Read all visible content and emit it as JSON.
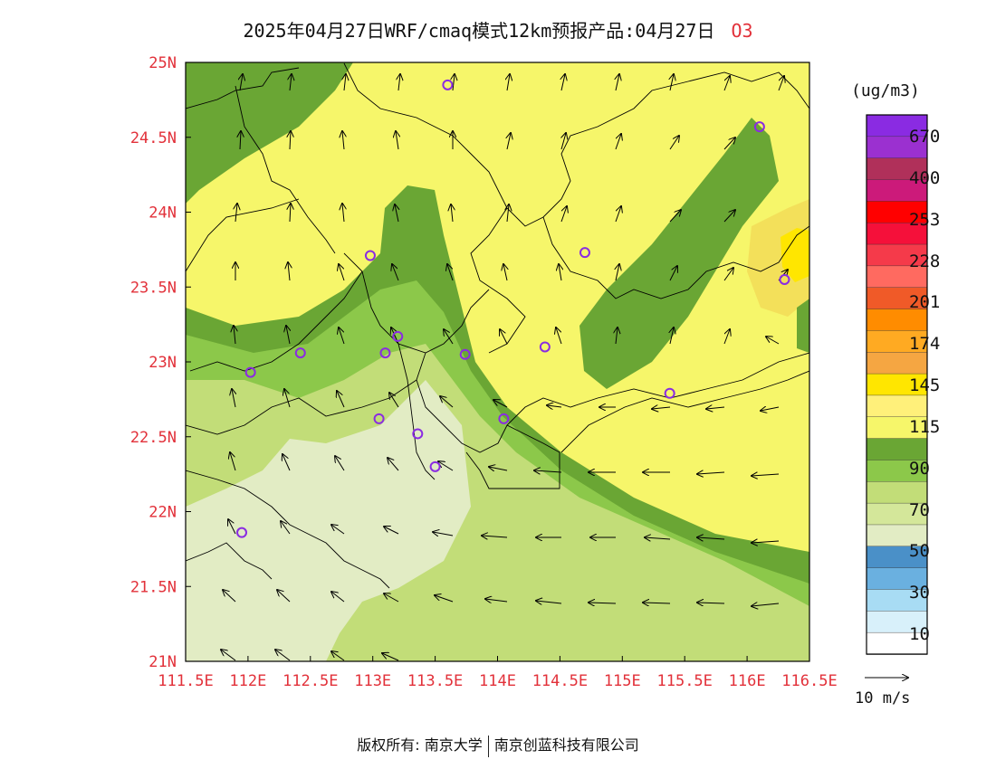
{
  "header": {
    "title": "2025年04月27日WRF/cmaq模式12km预报产品:04月27日",
    "species": "O3"
  },
  "axes": {
    "y_labels": [
      "25N",
      "24.5N",
      "24N",
      "23.5N",
      "23N",
      "22.5N",
      "22N",
      "21.5N",
      "21N"
    ],
    "x_labels": [
      "111.5E",
      "112E",
      "112.5E",
      "113E",
      "113.5E",
      "114E",
      "114.5E",
      "115E",
      "115.5E",
      "116E",
      "116.5E"
    ],
    "lat_range": [
      21,
      25
    ],
    "lon_range": [
      111.5,
      116.5
    ]
  },
  "colorbar": {
    "unit": "(ug/m3)",
    "labels": [
      "670",
      "400",
      "253",
      "228",
      "201",
      "174",
      "145",
      "115",
      "90",
      "70",
      "50",
      "30",
      "10"
    ],
    "colors_top_to_bottom": [
      "#8a2be2",
      "#9b30d0",
      "#b0305a",
      "#cc1a7a",
      "#ff0000",
      "#f5103a",
      "#f53a4a",
      "#ff6a60",
      "#f05a28",
      "#ff8c00",
      "#ffaa22",
      "#f5a642",
      "#ffe600",
      "#fff07a",
      "#f6f66a",
      "#6aa634",
      "#8cc84a",
      "#c2dd78",
      "#d4e79a",
      "#e2ecc4",
      "#4a90c8",
      "#6ab0e0",
      "#a8dcf4",
      "#d8f0fa",
      "#ffffff"
    ]
  },
  "wind_reference": {
    "label": "10 m/s"
  },
  "footer": {
    "left": "版权所有: 南京大学",
    "right": "南京创蓝科技有限公司"
  },
  "map": {
    "fill_colors": {
      "yellow": "#f6f66a",
      "dark_green": "#6aa634",
      "mid_green": "#8cc84a",
      "light_green": "#c2dd78",
      "pale_green": "#e2ecc4",
      "orange_yellow": "#f3e05a",
      "bright_yellow": "#ffe600"
    },
    "stations": [
      {
        "lon": 113.6,
        "lat": 24.85
      },
      {
        "lon": 116.1,
        "lat": 24.57
      },
      {
        "lon": 112.98,
        "lat": 23.71
      },
      {
        "lon": 114.7,
        "lat": 23.73
      },
      {
        "lon": 116.3,
        "lat": 23.55
      },
      {
        "lon": 112.42,
        "lat": 23.06
      },
      {
        "lon": 113.2,
        "lat": 23.17
      },
      {
        "lon": 113.1,
        "lat": 23.06
      },
      {
        "lon": 113.74,
        "lat": 23.05
      },
      {
        "lon": 114.38,
        "lat": 23.1
      },
      {
        "lon": 112.02,
        "lat": 22.93
      },
      {
        "lon": 115.38,
        "lat": 22.79
      },
      {
        "lon": 113.05,
        "lat": 22.62
      },
      {
        "lon": 114.05,
        "lat": 22.62
      },
      {
        "lon": 113.36,
        "lat": 22.52
      },
      {
        "lon": 113.5,
        "lat": 22.3
      },
      {
        "lon": 111.95,
        "lat": 21.86
      }
    ]
  }
}
